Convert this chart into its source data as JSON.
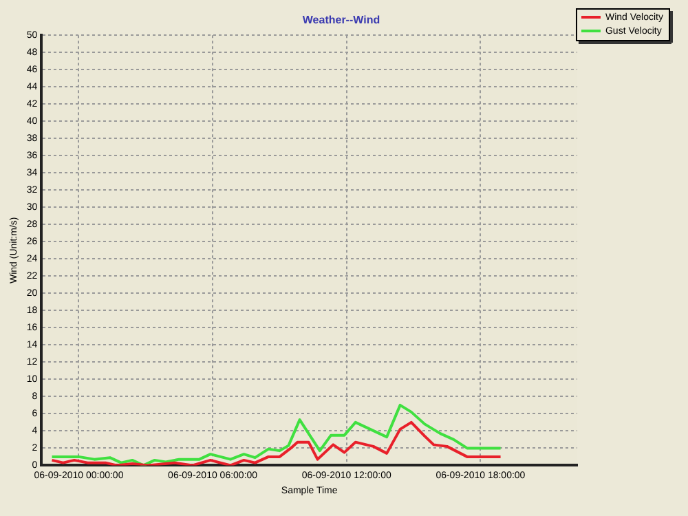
{
  "chart_data": {
    "type": "line",
    "title": "Weather--Wind",
    "xlabel": "Sample Time",
    "ylabel": "Wind (Unit:m/s)",
    "xlim": [
      "2010-06-08T22:20",
      "2010-06-09T22:20"
    ],
    "xticks": [
      {
        "value": "2010-06-09T00:00",
        "label": "06-09-2010 00:00:00"
      },
      {
        "value": "2010-06-09T06:00",
        "label": "06-09-2010 06:00:00"
      },
      {
        "value": "2010-06-09T12:00",
        "label": "06-09-2010 12:00:00"
      },
      {
        "value": "2010-06-09T18:00",
        "label": "06-09-2010 18:00:00"
      }
    ],
    "ylim": [
      0,
      50
    ],
    "yticks": [
      0,
      2,
      4,
      6,
      8,
      10,
      12,
      14,
      16,
      18,
      20,
      22,
      24,
      26,
      28,
      30,
      32,
      34,
      36,
      38,
      40,
      42,
      44,
      46,
      48,
      50
    ],
    "grid": true,
    "legend": "top right",
    "marker": "none",
    "line_style": "solid",
    "series": [
      {
        "name": "Wind Velocity",
        "color": "#e8202a",
        "x": [
          "2010-06-08T22:48",
          "2010-06-08T23:18",
          "2010-06-08T23:48",
          "2010-06-09T00:24",
          "2010-06-09T01:12",
          "2010-06-09T01:42",
          "2010-06-09T02:24",
          "2010-06-09T03:06",
          "2010-06-09T04:18",
          "2010-06-09T05:06",
          "2010-06-09T05:54",
          "2010-06-09T06:48",
          "2010-06-09T07:24",
          "2010-06-09T07:54",
          "2010-06-09T08:30",
          "2010-06-09T09:00",
          "2010-06-09T09:30",
          "2010-06-09T09:48",
          "2010-06-09T10:18",
          "2010-06-09T10:42",
          "2010-06-09T11:24",
          "2010-06-09T11:54",
          "2010-06-09T12:24",
          "2010-06-09T13:12",
          "2010-06-09T13:48",
          "2010-06-09T14:24",
          "2010-06-09T14:54",
          "2010-06-09T15:30",
          "2010-06-09T15:54",
          "2010-06-09T16:30",
          "2010-06-09T17:24",
          "2010-06-09T18:54"
        ],
        "values": [
          0.6,
          0.3,
          0.6,
          0.3,
          0.3,
          0,
          0.2,
          0,
          0.3,
          0,
          0.6,
          0,
          0.6,
          0.3,
          1.0,
          1.0,
          2.0,
          2.7,
          2.7,
          0.7,
          2.4,
          1.5,
          2.7,
          2.2,
          1.4,
          4.2,
          5.0,
          3.4,
          2.4,
          2.2,
          1.0,
          1.0
        ]
      },
      {
        "name": "Gust Velocity",
        "color": "#40e040",
        "x": [
          "2010-06-08T22:48",
          "2010-06-09T00:00",
          "2010-06-09T00:42",
          "2010-06-09T01:24",
          "2010-06-09T01:54",
          "2010-06-09T02:24",
          "2010-06-09T02:54",
          "2010-06-09T03:24",
          "2010-06-09T03:54",
          "2010-06-09T04:30",
          "2010-06-09T05:24",
          "2010-06-09T05:54",
          "2010-06-09T06:48",
          "2010-06-09T07:24",
          "2010-06-09T07:54",
          "2010-06-09T08:30",
          "2010-06-09T09:00",
          "2010-06-09T09:24",
          "2010-06-09T09:54",
          "2010-06-09T10:48",
          "2010-06-09T11:18",
          "2010-06-09T11:54",
          "2010-06-09T12:24",
          "2010-06-09T13:48",
          "2010-06-09T14:24",
          "2010-06-09T14:54",
          "2010-06-09T15:30",
          "2010-06-09T16:12",
          "2010-06-09T16:48",
          "2010-06-09T17:24",
          "2010-06-09T18:54"
        ],
        "values": [
          1.0,
          1.0,
          0.7,
          0.9,
          0.3,
          0.6,
          0,
          0.6,
          0.4,
          0.7,
          0.7,
          1.3,
          0.7,
          1.3,
          0.9,
          1.9,
          1.7,
          2.3,
          5.3,
          1.7,
          3.5,
          3.5,
          5.0,
          3.3,
          7.0,
          6.2,
          4.8,
          3.7,
          3.0,
          2.0,
          2.0
        ]
      }
    ]
  }
}
